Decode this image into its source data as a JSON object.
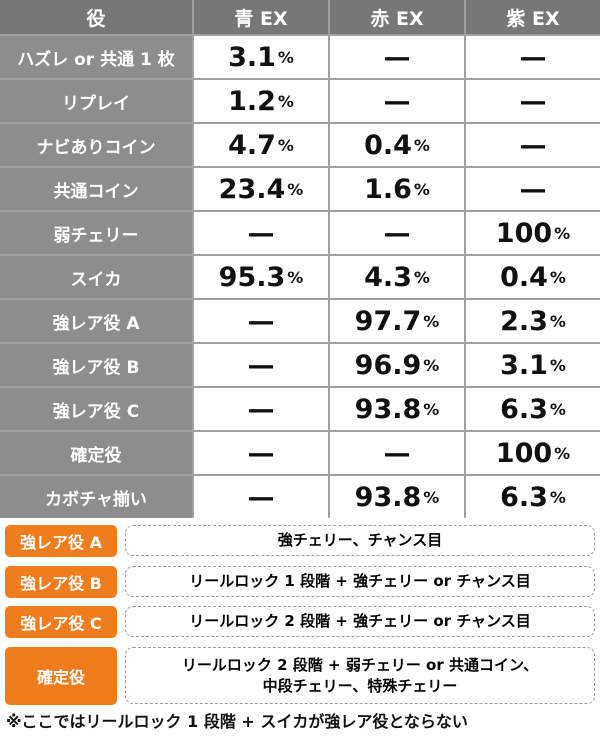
{
  "table": {
    "header": [
      "役",
      "青 EX",
      "赤 EX",
      "紫 EX"
    ],
    "rows": [
      [
        "ハズレ or 共通 1 枚",
        "3.1%",
        "—",
        "—"
      ],
      [
        "リプレイ",
        "1.2%",
        "—",
        "—"
      ],
      [
        "ナビありコイン",
        "4.7%",
        "0.4%",
        "—"
      ],
      [
        "共通コイン",
        "23.4%",
        "1.6%",
        "—"
      ],
      [
        "弱チェリー",
        "—",
        "—",
        "100%"
      ],
      [
        "スイカ",
        "95.3%",
        "4.3%",
        "0.4%"
      ],
      [
        "強レア役 A",
        "—",
        "97.7%",
        "2.3%"
      ],
      [
        "強レア役 B",
        "—",
        "96.9%",
        "3.1%"
      ],
      [
        "強レア役 C",
        "—",
        "93.8%",
        "6.3%"
      ],
      [
        "確定役",
        "—",
        "—",
        "100%"
      ],
      [
        "カボチャ揃い",
        "—",
        "93.8%",
        "6.3%"
      ]
    ]
  },
  "legend": [
    {
      "label": "強レア役 A",
      "text": "強チェリー、チャンス目"
    },
    {
      "label": "強レア役 B",
      "text": "リールロック 1 段階 + 強チェリー or チャンス目"
    },
    {
      "label": "強レア役 C",
      "text": "リールロック 2 段階 + 強チェリー or チャンス目"
    },
    {
      "label": "確定役",
      "text": "リールロック 2 段階 + 弱チェリー or 共通コイン、\n中段チェリー、特殊チェリー"
    }
  ],
  "footnote": "※ここではリールロック 1 段階 + スイカが強レア役とならない"
}
